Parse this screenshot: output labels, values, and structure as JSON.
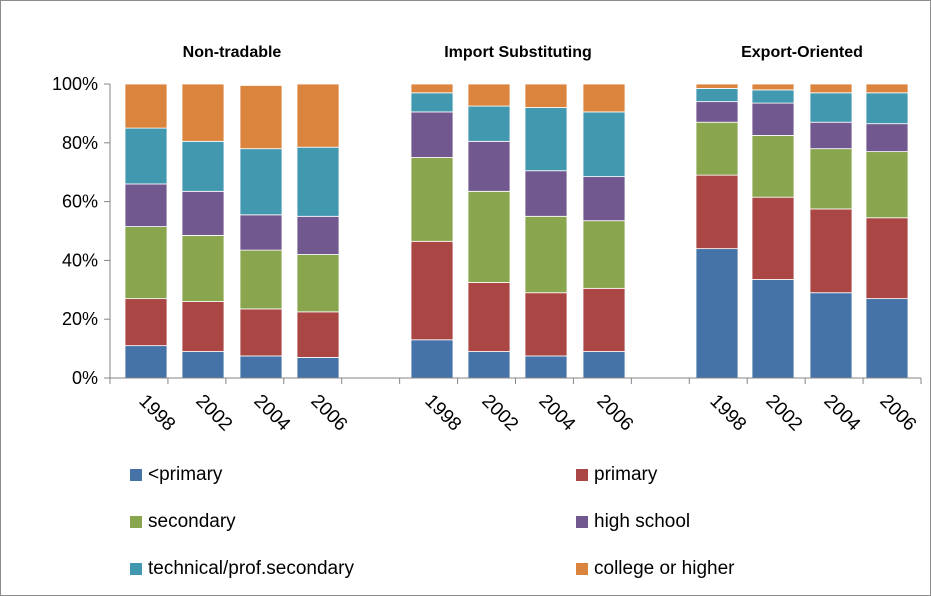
{
  "chart_data": {
    "type": "bar",
    "stacked": true,
    "percent": true,
    "groups": [
      {
        "title": "Non-tradable",
        "categories": [
          "1998",
          "2002",
          "2004",
          "2006"
        ]
      },
      {
        "title": "Import Substituting",
        "categories": [
          "1998",
          "2002",
          "2004",
          "2006"
        ]
      },
      {
        "title": "Export-Oriented",
        "categories": [
          "1998",
          "2002",
          "2004",
          "2006"
        ]
      }
    ],
    "series": [
      {
        "name": "<primary",
        "color": "#4572A7",
        "values": [
          [
            11,
            9,
            7.5,
            7
          ],
          [
            13,
            9,
            7.5,
            9
          ],
          [
            44,
            33.5,
            29,
            27
          ]
        ]
      },
      {
        "name": "primary",
        "color": "#AA4643",
        "values": [
          [
            16,
            17,
            16,
            15.5
          ],
          [
            33.5,
            23.5,
            21.5,
            21.5
          ],
          [
            25,
            28,
            28.5,
            27.5
          ]
        ]
      },
      {
        "name": "secondary",
        "color": "#89A54E",
        "values": [
          [
            24.5,
            22.5,
            20,
            19.5
          ],
          [
            28.5,
            31,
            26,
            23
          ],
          [
            18,
            21,
            20.5,
            22.5
          ]
        ]
      },
      {
        "name": "high school",
        "color": "#71588F",
        "values": [
          [
            14.5,
            15,
            12,
            13
          ],
          [
            15.5,
            17,
            15.5,
            15
          ],
          [
            7,
            11,
            9,
            9.5
          ]
        ]
      },
      {
        "name": "technical/prof.secondary",
        "color": "#4198AF",
        "values": [
          [
            19,
            17,
            22.5,
            23.5
          ],
          [
            6.5,
            12,
            21.5,
            22
          ],
          [
            4.5,
            4.5,
            10,
            10.5
          ]
        ]
      },
      {
        "name": "college or higher",
        "color": "#DB843D",
        "values": [
          [
            15,
            19.5,
            21.5,
            21.5
          ],
          [
            3,
            7.5,
            8,
            9.5
          ],
          [
            1.5,
            2,
            3,
            3
          ]
        ]
      }
    ],
    "y_ticks": [
      "0%",
      "20%",
      "40%",
      "60%",
      "80%",
      "100%"
    ],
    "ylim": [
      0,
      100
    ],
    "grid": false,
    "legend": "bottom"
  }
}
